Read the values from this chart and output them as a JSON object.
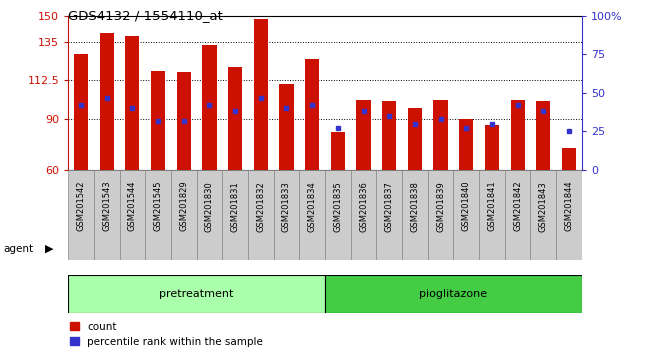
{
  "title": "GDS4132 / 1554110_at",
  "samples": [
    "GSM201542",
    "GSM201543",
    "GSM201544",
    "GSM201545",
    "GSM201829",
    "GSM201830",
    "GSM201831",
    "GSM201832",
    "GSM201833",
    "GSM201834",
    "GSM201835",
    "GSM201836",
    "GSM201837",
    "GSM201838",
    "GSM201839",
    "GSM201840",
    "GSM201841",
    "GSM201842",
    "GSM201843",
    "GSM201844"
  ],
  "counts": [
    128,
    140,
    138,
    118,
    117,
    133,
    120,
    148,
    110,
    125,
    82,
    101,
    100,
    96,
    101,
    90,
    86,
    101,
    100,
    73
  ],
  "percentile_ranks": [
    42,
    47,
    40,
    32,
    32,
    42,
    38,
    47,
    40,
    42,
    27,
    38,
    35,
    30,
    33,
    27,
    30,
    42,
    38,
    25
  ],
  "bar_color": "#cc1100",
  "dot_color": "#3333cc",
  "pretreatment_color": "#aaffaa",
  "pioglitazone_color": "#44cc44",
  "agent_band_color": "#333333",
  "sample_bg_color": "#cccccc",
  "plot_bg_color": "#ffffff",
  "pretreatment_count": 10,
  "pioglitazone_count": 10,
  "ylim_left": [
    60,
    150
  ],
  "ylim_right": [
    0,
    100
  ],
  "yticks_left": [
    60,
    90,
    112.5,
    135,
    150
  ],
  "yticks_right": [
    0,
    25,
    50,
    75,
    100
  ],
  "legend_labels": [
    "count",
    "percentile rank within the sample"
  ]
}
